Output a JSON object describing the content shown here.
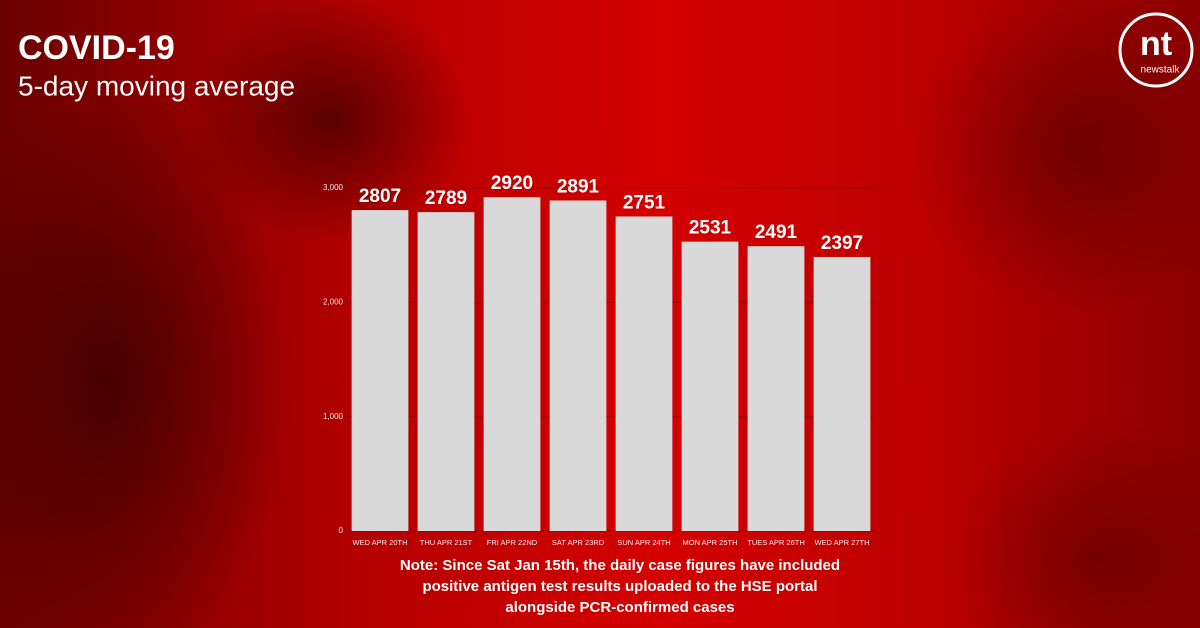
{
  "chart_data": {
    "type": "bar",
    "title": "COVID-19",
    "subtitle": "5-day moving average",
    "categories": [
      "WED APR 20TH",
      "THU APR 21ST",
      "FRI APR 22ND",
      "SAT APR 23RD",
      "SUN APR 24TH",
      "MON APR 25TH",
      "TUES APR 26TH",
      "WED APR 27TH"
    ],
    "values": [
      2807,
      2789,
      2920,
      2891,
      2751,
      2531,
      2491,
      2397
    ],
    "color": "#d9d9d9",
    "ylim": [
      0,
      3000
    ],
    "yticks": [
      0,
      {
        "value": 1000,
        "label": "1,000"
      },
      {
        "value": 2000,
        "label": "2,000"
      },
      {
        "value": 3000,
        "label": "3,000"
      }
    ],
    "grid": true,
    "note": [
      "Note: Since Sat Jan 15th, the daily case figures have included",
      "positive antigen test results uploaded to the HSE portal",
      "alongside PCR-confirmed cases"
    ],
    "brand": [
      "nt",
      "newstalk"
    ]
  }
}
